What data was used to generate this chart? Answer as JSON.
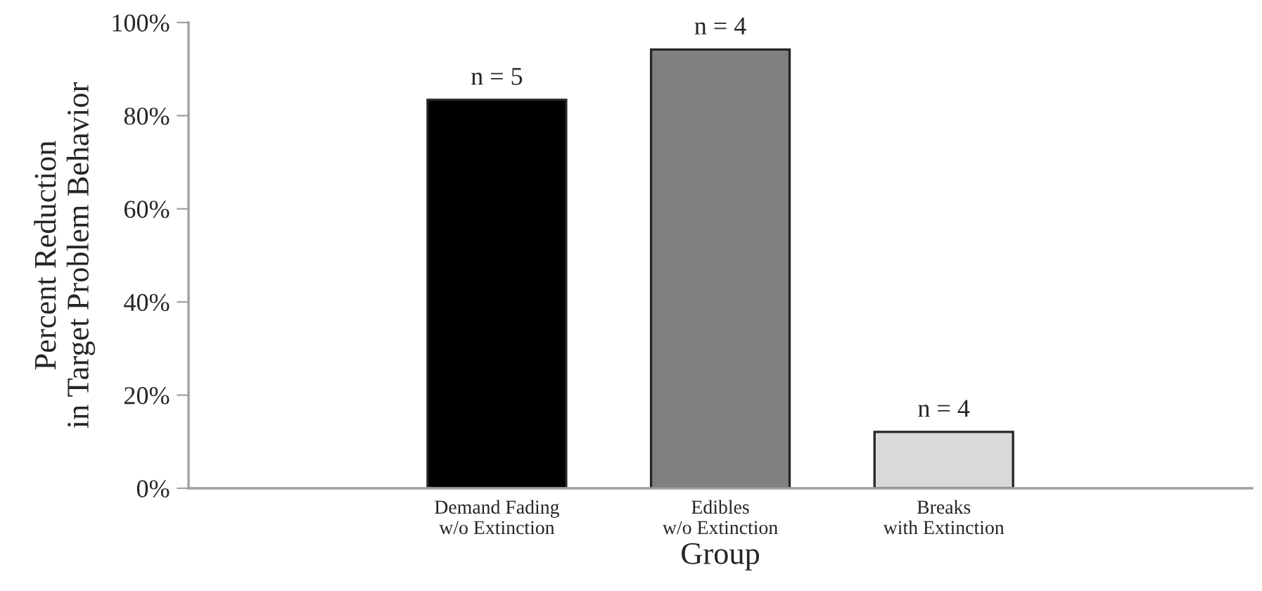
{
  "chart_data": {
    "type": "bar",
    "xlabel": "Group",
    "ylabel": "Percent Reduction\nin Target Problem Behavior",
    "categories": [
      "Demand Fading\nw/o Extinction",
      "Edibles\nw/o Extinction",
      "Breaks\nwith Extinction"
    ],
    "values": [
      83.4,
      94.2,
      12.1
    ],
    "colors": [
      "#000000",
      "#808080",
      "#d9d9d9"
    ],
    "ylim": [
      0,
      100
    ],
    "yticks": [
      {
        "value": 0,
        "label": "0%"
      },
      {
        "value": 20,
        "label": "20%"
      },
      {
        "value": 40,
        "label": "40%"
      },
      {
        "value": 60,
        "label": "60%"
      },
      {
        "value": 80,
        "label": "80%"
      },
      {
        "value": 100,
        "label": "100%"
      }
    ],
    "grid": false,
    "legend": false,
    "annotations": [
      {
        "text": "n = 5",
        "x": "Demand Fading\nw/o Extinction",
        "y": 83.4
      },
      {
        "text": "n = 4",
        "x": "Edibles\nw/o Extinction",
        "y": 94.2
      },
      {
        "text": "n = 4",
        "x": "Breaks\nwith Extinction",
        "y": 12.1
      }
    ]
  }
}
